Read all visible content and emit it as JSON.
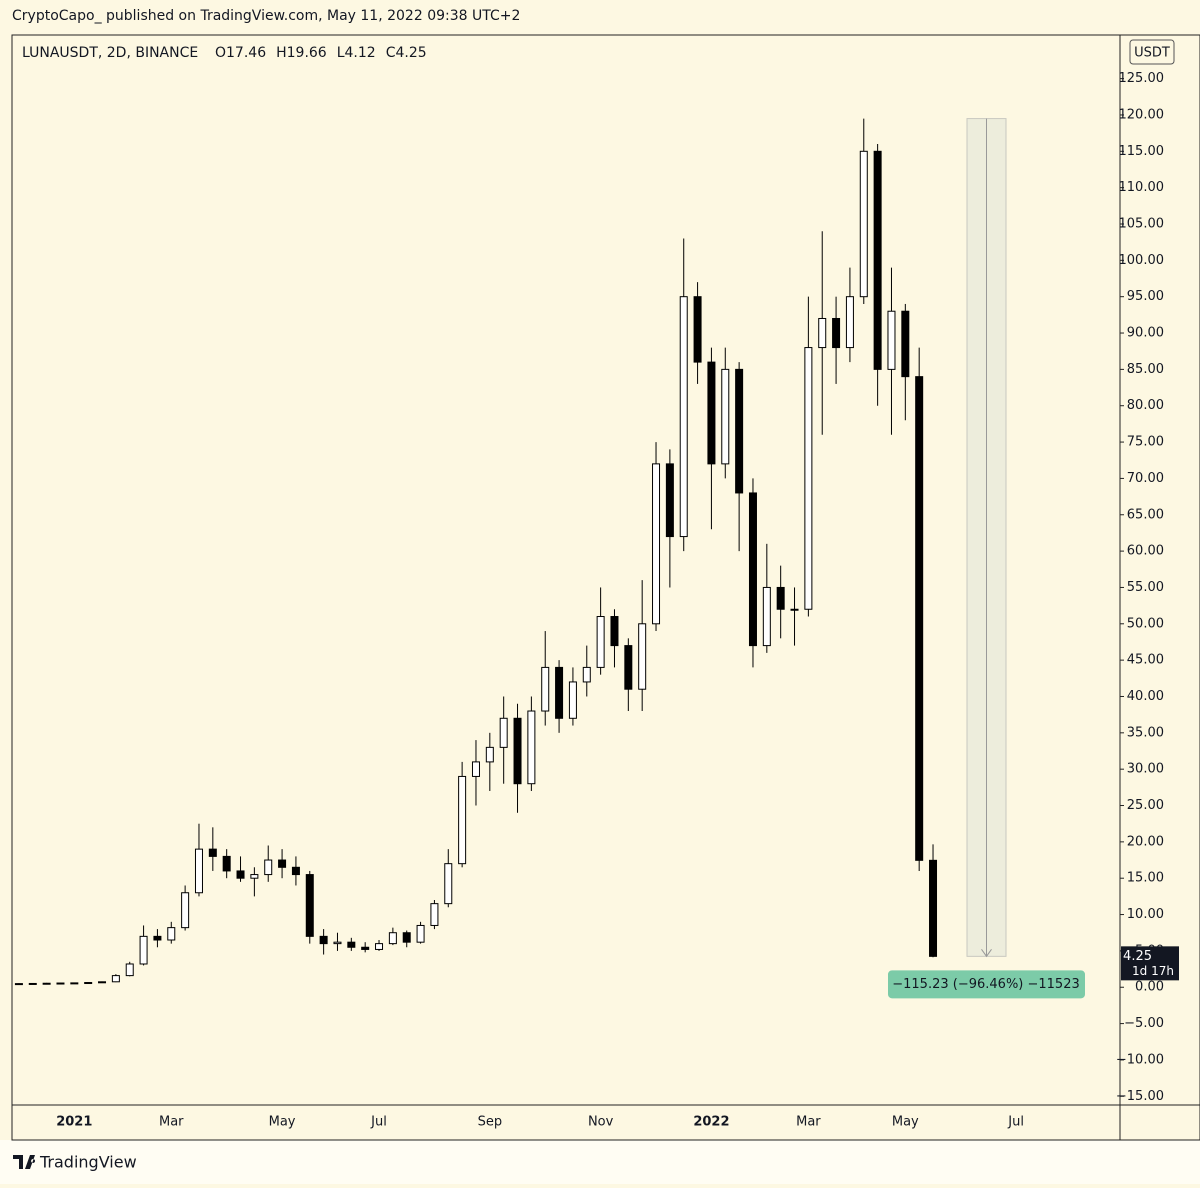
{
  "header": "CryptoCapo_ published on TradingView.com, May 11, 2022 09:38 UTC+2",
  "footer": "TradingView",
  "chart_data": {
    "type": "candlestick",
    "symbol": "LUNAUSDT, 2D, BINANCE",
    "ohlc_labels": [
      "O17.46",
      "H19.66",
      "L4.12",
      "C4.25"
    ],
    "currency": "USDT",
    "colors": {
      "up_body": "#ffffff",
      "down_body": "#000000",
      "outline": "#000000",
      "background": "#fdf8e2"
    },
    "categories": [
      null,
      null,
      null,
      null,
      "2021",
      null,
      null,
      null,
      null,
      null,
      null,
      "Mar",
      null,
      null,
      null,
      null,
      null,
      null,
      null,
      "May",
      null,
      null,
      null,
      null,
      null,
      null,
      "Jul",
      null,
      null,
      null,
      null,
      null,
      null,
      null,
      "Sep",
      null,
      null,
      null,
      null,
      null,
      null,
      null,
      "Nov",
      null,
      null,
      null,
      null,
      null,
      null,
      null,
      "2022",
      null,
      null,
      null,
      null,
      null,
      null,
      "Mar",
      null,
      null,
      null,
      null,
      null,
      null,
      "May",
      null,
      null,
      null,
      null,
      null,
      null,
      null,
      "Jul",
      null,
      null,
      null,
      null,
      null,
      null,
      null
    ],
    "open": [
      0.5,
      0.5,
      0.52,
      0.55,
      0.58,
      0.6,
      0.65,
      0.75,
      1.6,
      3.2,
      7,
      6.5,
      8.2,
      13,
      19,
      18,
      16,
      15,
      15.5,
      17.5,
      16.5,
      15.5,
      7,
      6,
      6.2,
      5.5,
      5.2,
      6,
      7.5,
      6.2,
      8.5,
      11.5,
      17,
      29,
      31,
      33,
      37,
      28,
      38,
      44,
      37,
      42,
      44,
      51,
      47,
      41,
      50,
      72,
      62,
      95,
      86,
      72,
      85,
      68,
      47,
      55,
      52,
      52,
      88,
      92,
      88,
      95,
      115,
      85,
      93,
      84,
      17.46,
      null,
      null,
      null,
      null,
      null,
      null,
      null,
      null,
      null,
      null,
      null,
      null,
      null
    ],
    "high": [
      0.55,
      0.55,
      0.6,
      0.62,
      0.65,
      0.7,
      0.8,
      1.8,
      3.5,
      8.5,
      8,
      9,
      14,
      22.5,
      22,
      19,
      18,
      16.5,
      19.5,
      19,
      18,
      16,
      8,
      7.5,
      6.8,
      6.2,
      6.5,
      8.2,
      7.8,
      9,
      12,
      19,
      31,
      34,
      35,
      40,
      39,
      40,
      49,
      45,
      44,
      47,
      55,
      52,
      48,
      56,
      75,
      74,
      103,
      97,
      88,
      88,
      86,
      70,
      61,
      58,
      55,
      95,
      104,
      95,
      99,
      119.5,
      116,
      99,
      94,
      88,
      19.66,
      null,
      null,
      null,
      null,
      null,
      null,
      null,
      null,
      null,
      null,
      null,
      null,
      null
    ],
    "low": [
      0.45,
      0.45,
      0.48,
      0.5,
      0.52,
      0.55,
      0.6,
      0.7,
      1.5,
      3,
      5.5,
      6,
      7.8,
      12.5,
      16,
      15,
      14.5,
      12.5,
      14.5,
      15,
      14,
      6,
      4.5,
      5,
      5,
      4.8,
      5,
      5.8,
      5.5,
      6,
      8,
      11,
      16.5,
      25,
      27,
      28,
      24,
      27,
      36,
      35,
      36,
      40,
      43,
      44,
      38,
      38,
      49,
      55,
      60,
      83,
      63,
      70,
      60,
      44,
      46,
      48,
      47,
      51,
      76,
      83,
      86,
      94,
      80,
      76,
      78,
      16,
      4.12,
      null,
      null,
      null,
      null,
      null,
      null,
      null,
      null,
      null,
      null,
      null,
      null,
      null
    ],
    "close": [
      0.5,
      0.52,
      0.55,
      0.58,
      0.6,
      0.65,
      0.75,
      1.6,
      3.2,
      7,
      6.5,
      8.2,
      13,
      19,
      18,
      16,
      15,
      15.5,
      17.5,
      16.5,
      15.5,
      7,
      6,
      6.2,
      5.5,
      5.2,
      6,
      7.5,
      6.2,
      8.5,
      11.5,
      17,
      29,
      31,
      33,
      37,
      28,
      38,
      44,
      37,
      42,
      44,
      51,
      47,
      41,
      50,
      72,
      62,
      95,
      86,
      72,
      85,
      68,
      47,
      55,
      52,
      52,
      88,
      92,
      88,
      95,
      115,
      85,
      93,
      84,
      17.46,
      4.25,
      null,
      null,
      null,
      null,
      null,
      null,
      null,
      null,
      null,
      null,
      null,
      null,
      null
    ],
    "ylim": [
      -16.2,
      131
    ],
    "yticks": [
      {
        "value": -15,
        "label": "−15.00"
      },
      {
        "value": -10,
        "label": "−10.00"
      },
      {
        "value": -5,
        "label": "−5.00"
      },
      {
        "value": 0,
        "label": "0.00"
      },
      {
        "value": 5,
        "label": "5.00"
      },
      {
        "value": 10,
        "label": "10.00"
      },
      {
        "value": 15,
        "label": "15.00"
      },
      {
        "value": 20,
        "label": "20.00"
      },
      {
        "value": 25,
        "label": "25.00"
      },
      {
        "value": 30,
        "label": "30.00"
      },
      {
        "value": 35,
        "label": "35.00"
      },
      {
        "value": 40,
        "label": "40.00"
      },
      {
        "value": 45,
        "label": "45.00"
      },
      {
        "value": 50,
        "label": "50.00"
      },
      {
        "value": 55,
        "label": "55.00"
      },
      {
        "value": 60,
        "label": "60.00"
      },
      {
        "value": 65,
        "label": "65.00"
      },
      {
        "value": 70,
        "label": "70.00"
      },
      {
        "value": 75,
        "label": "75.00"
      },
      {
        "value": 80,
        "label": "80.00"
      },
      {
        "value": 85,
        "label": "85.00"
      },
      {
        "value": 90,
        "label": "90.00"
      },
      {
        "value": 95,
        "label": "95.00"
      },
      {
        "value": 100,
        "label": "100.00"
      },
      {
        "value": 105,
        "label": "105.00"
      },
      {
        "value": 110,
        "label": "110.00"
      },
      {
        "value": 115,
        "label": "115.00"
      },
      {
        "value": 120,
        "label": "120.00"
      },
      {
        "value": 125,
        "label": "125.00"
      }
    ],
    "last_price": 4.25,
    "countdown": "1d 17h",
    "measure": {
      "from": 119.5,
      "to": 4.25,
      "label": "−115.23 (−96.46%) −11523",
      "color": "#7ccba8"
    }
  }
}
